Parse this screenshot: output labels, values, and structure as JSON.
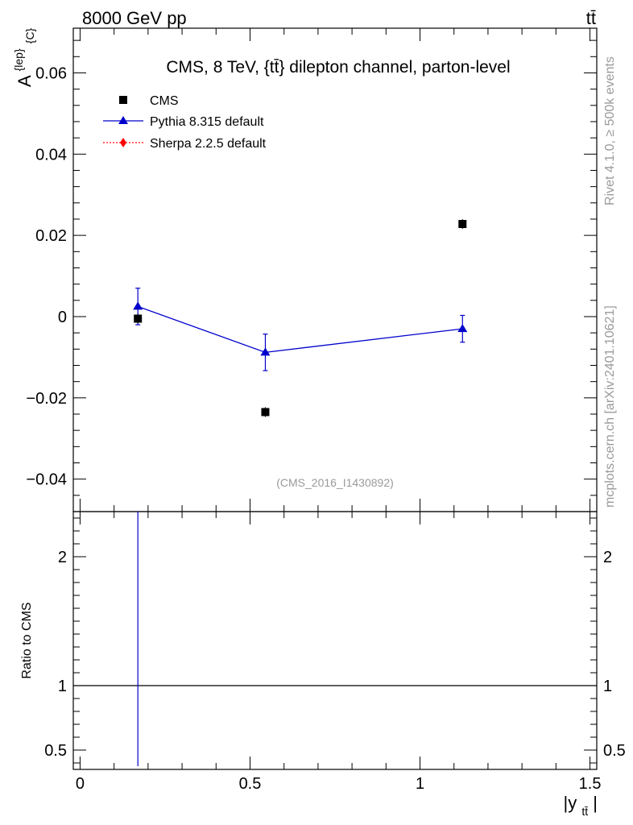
{
  "header": {
    "left": "8000 GeV pp",
    "right": "tt̄"
  },
  "side_labels": {
    "rivet": "Rivet 4.1.0, ≥ 500k events",
    "mcplots": "mcplots.cern.ch [arXiv:2401.10621]"
  },
  "chart_data": [
    {
      "panel": "main",
      "type": "scatter",
      "title": "CMS, 8 TeV, {tt̄} dilepton channel, parton-level",
      "ylabel": "A^{lep}_{C}",
      "ylabel_main": "A",
      "ylabel_sup": "{lep}",
      "ylabel_sub": "{C}",
      "xlim": [
        -0.02,
        1.52
      ],
      "ylim": [
        -0.048,
        0.071
      ],
      "yticks": [
        0.06,
        0.04,
        0.02,
        0,
        -0.02,
        -0.04
      ],
      "ytick_labels": [
        "0.06",
        "0.04",
        "0.02",
        "0",
        "−0.02",
        "−0.04"
      ],
      "watermark": "(CMS_2016_I1430892)",
      "legend": {
        "position": "top-left",
        "entries": [
          "CMS",
          "Pythia 8.315 default",
          "Sherpa 2.2.5 default"
        ]
      },
      "series": [
        {
          "name": "CMS",
          "style": "black-square",
          "x": [
            0.17,
            0.545,
            1.125
          ],
          "y": [
            -0.0005,
            -0.0235,
            0.0228
          ]
        },
        {
          "name": "Pythia 8.315 default",
          "style": "blue-triangle-line",
          "color": "#0000cc",
          "x": [
            0.17,
            0.545,
            1.125
          ],
          "y": [
            0.0025,
            -0.0088,
            -0.003
          ],
          "err": [
            0.0045,
            0.0045,
            0.0033
          ]
        },
        {
          "name": "Sherpa 2.2.5 default",
          "style": "red-diamond-dotted",
          "color": "#ff0000",
          "x": [],
          "y": []
        }
      ]
    },
    {
      "panel": "ratio",
      "type": "line",
      "ylabel": "Ratio to CMS",
      "xlabel": "|y_{tt̄}|",
      "xlabel_main": "|y",
      "xlabel_sub": "tt̄",
      "xlabel_end": "|",
      "xlim": [
        -0.02,
        1.52
      ],
      "ylim": [
        0.35,
        2.35
      ],
      "xticks": [
        0,
        0.5,
        1,
        1.5
      ],
      "xtick_labels": [
        "0",
        "0.5",
        "1",
        "1.5"
      ],
      "yticks": [
        2,
        1,
        0.5
      ],
      "ytick_labels": [
        "2",
        "1",
        "0.5"
      ],
      "reference_line": 1,
      "series": [
        {
          "name": "Pythia 8.315 default",
          "color": "#0000cc",
          "vertical_line_x": 0.17
        }
      ]
    }
  ]
}
